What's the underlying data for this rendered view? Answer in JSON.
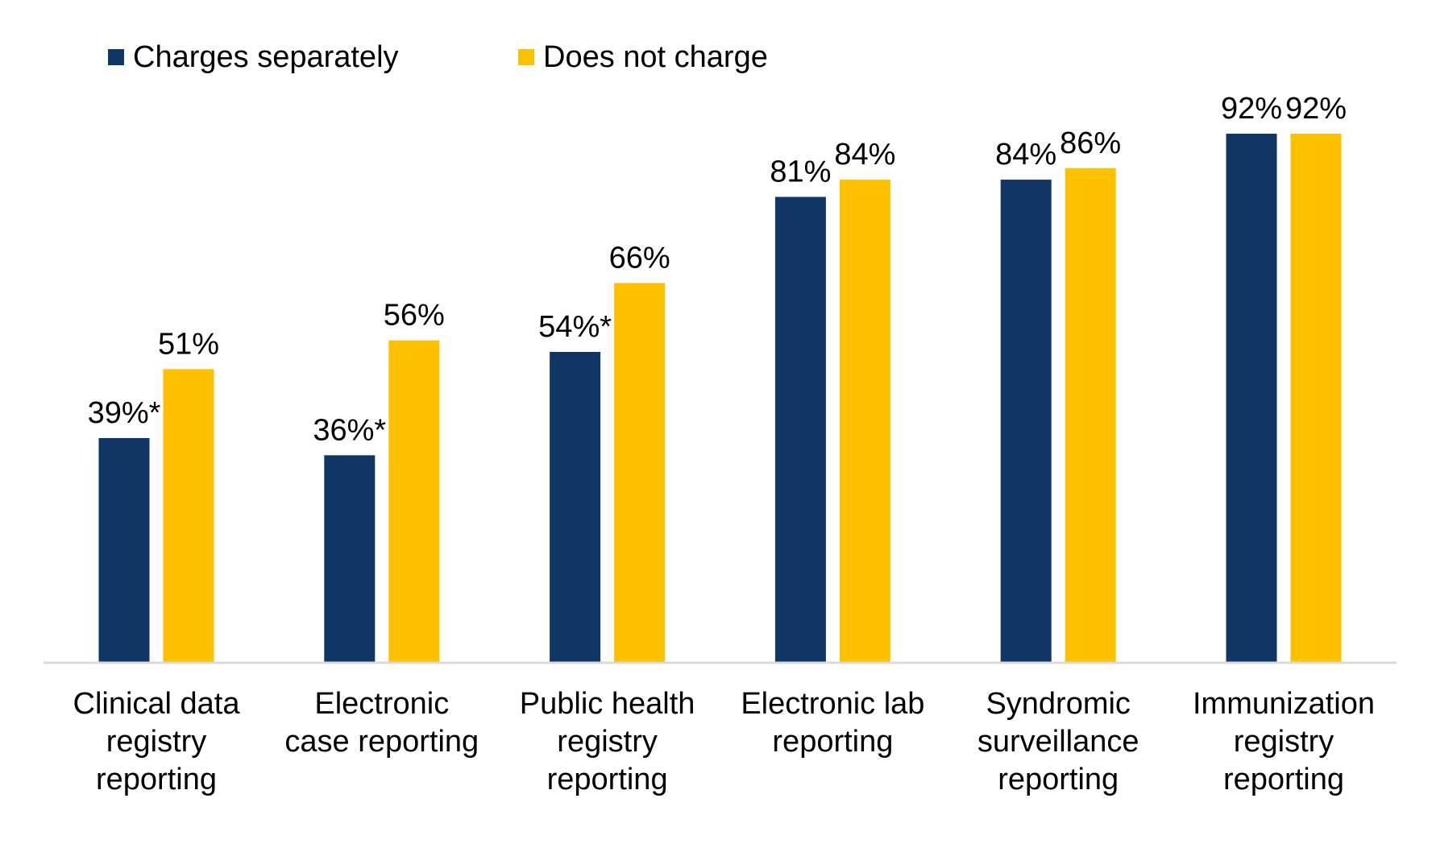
{
  "chart_data": {
    "type": "bar",
    "title": "",
    "xlabel": "",
    "ylabel": "",
    "ylim": [
      0,
      100
    ],
    "grid": false,
    "legend_position": "top-left",
    "categories": [
      [
        "Clinical data",
        "registry",
        "reporting"
      ],
      [
        "Electronic",
        "case reporting"
      ],
      [
        "Public health",
        "registry",
        "reporting"
      ],
      [
        "Electronic lab",
        "reporting"
      ],
      [
        "Syndromic",
        "surveillance",
        "reporting"
      ],
      [
        "Immunization",
        "registry",
        "reporting"
      ]
    ],
    "series": [
      {
        "name": "Charges separately",
        "color": "#0F3665",
        "values": [
          39,
          36,
          54,
          81,
          84,
          92
        ],
        "labels": [
          "39%*",
          "36%*",
          "54%*",
          "81%",
          "84%",
          "92%"
        ]
      },
      {
        "name": "Does not charge",
        "color": "#FDC100",
        "values": [
          51,
          56,
          66,
          84,
          86,
          92
        ],
        "labels": [
          "51%",
          "56%",
          "66%",
          "84%",
          "86%",
          "92%"
        ]
      }
    ]
  }
}
